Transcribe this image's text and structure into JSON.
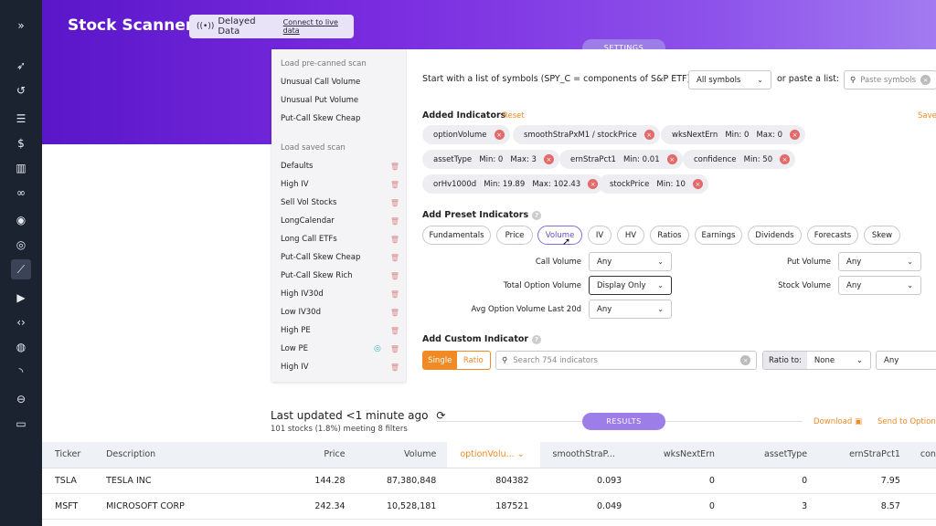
{
  "app": {
    "title": "Stock Scanner"
  },
  "status": {
    "delayed_label": "Delayed Data",
    "connect_link": "Connect to live data"
  },
  "tabs": {
    "settings": "SETTINGS",
    "results": "RESULTS"
  },
  "scans": {
    "precanned_header": "Load pre-canned scan",
    "precanned": [
      "Unusual Call Volume",
      "Unusual Put Volume",
      "Put-Call Skew Cheap"
    ],
    "saved_header": "Load saved scan",
    "saved": [
      "Defaults",
      "High IV",
      "Sell Vol Stocks",
      "LongCalendar",
      "Long Call ETFs",
      "Put-Call Skew Cheap",
      "Put-Call Skew Rich",
      "High IV30d",
      "Low IV30d",
      "High PE",
      "Low PE",
      "High IV"
    ]
  },
  "start": {
    "label": "Start with a list of symbols (SPY_C = components of S&P ETF):",
    "select_value": "All symbols",
    "or_paste": "or paste a list:",
    "paste_placeholder": "Paste symbols"
  },
  "added": {
    "title": "Added Indicators",
    "reset": "Reset",
    "save": "Save",
    "chips": [
      "optionVolume",
      "smoothStraPxM1 / stockPrice",
      "wksNextErn   Min: 0   Max: 0",
      "assetType   Min: 0   Max: 3",
      "ernStraPct1   Min: 0.01",
      "confidence   Min: 50",
      "orHv1000d   Min: 19.89   Max: 102.43",
      "stockPrice   Min: 10"
    ]
  },
  "preset": {
    "title": "Add Preset Indicators",
    "buttons": [
      "Fundamentals",
      "Price",
      "Volume",
      "IV",
      "HV",
      "Ratios",
      "Earnings",
      "Dividends",
      "Forecasts",
      "Skew"
    ],
    "fields": {
      "call_volume": {
        "label": "Call Volume",
        "value": "Any"
      },
      "total_option_volume": {
        "label": "Total Option Volume",
        "value": "Display Only"
      },
      "avg_option_volume": {
        "label": "Avg Option Volume Last 20d",
        "value": "Any"
      },
      "put_volume": {
        "label": "Put Volume",
        "value": "Any"
      },
      "stock_volume": {
        "label": "Stock Volume",
        "value": "Any"
      }
    }
  },
  "custom": {
    "title": "Add Custom Indicator",
    "single": "Single",
    "ratio": "Ratio",
    "search_placeholder": "Search 754 indicators",
    "ratio_to_label": "Ratio to:",
    "ratio_to_value": "None",
    "any_value": "Any"
  },
  "results": {
    "updated": "Last updated <1 minute ago",
    "count": "101 stocks (1.8%) meeting 8 filters",
    "download": "Download",
    "send": "Send to Option",
    "columns": [
      "Ticker",
      "Description",
      "Price",
      "Volume",
      "optionVolu...",
      "smoothStraP...",
      "wksNextErn",
      "assetType",
      "ernStraPct1",
      "con"
    ],
    "rows": [
      [
        "TSLA",
        "TESLA INC",
        "144.28",
        "87,380,848",
        "804382",
        "0.093",
        "0",
        "0",
        "7.95",
        ""
      ],
      [
        "MSFT",
        "MICROSOFT CORP",
        "242.34",
        "10,528,181",
        "187521",
        "0.049",
        "0",
        "3",
        "8.57",
        ""
      ]
    ]
  }
}
